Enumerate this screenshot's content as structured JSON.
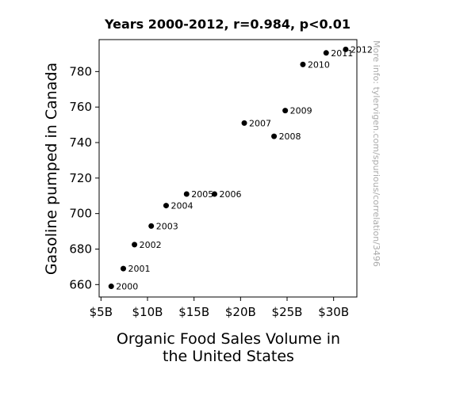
{
  "chart_data": {
    "type": "scatter",
    "title": "Years 2000-2012, r=0.984, p<0.01",
    "xlabel": [
      "Organic Food Sales Volume in",
      "the United States"
    ],
    "ylabel": "Gasoline pumped in Canada",
    "xlim": [
      4.8,
      32.5
    ],
    "ylim": [
      653,
      798
    ],
    "xticks": [
      5,
      10,
      15,
      20,
      25,
      30
    ],
    "xtick_labels": [
      "$5B",
      "$10B",
      "$15B",
      "$20B",
      "$25B",
      "$30B"
    ],
    "yticks": [
      660,
      680,
      700,
      720,
      740,
      760,
      780
    ],
    "ytick_labels": [
      "660",
      "680",
      "700",
      "720",
      "740",
      "760",
      "780"
    ],
    "grid": false,
    "marker_color": "#000000",
    "points": [
      {
        "label": "2000",
        "x": 6.1,
        "y": 659
      },
      {
        "label": "2001",
        "x": 7.4,
        "y": 669
      },
      {
        "label": "2002",
        "x": 8.6,
        "y": 682.5
      },
      {
        "label": "2003",
        "x": 10.4,
        "y": 693
      },
      {
        "label": "2004",
        "x": 12.0,
        "y": 704.5
      },
      {
        "label": "2005",
        "x": 14.2,
        "y": 711
      },
      {
        "label": "2006",
        "x": 17.2,
        "y": 711
      },
      {
        "label": "2007",
        "x": 20.4,
        "y": 751
      },
      {
        "label": "2008",
        "x": 23.6,
        "y": 743.5
      },
      {
        "label": "2009",
        "x": 24.8,
        "y": 758
      },
      {
        "label": "2010",
        "x": 26.7,
        "y": 784
      },
      {
        "label": "2011",
        "x": 29.2,
        "y": 790.5
      },
      {
        "label": "2012",
        "x": 31.3,
        "y": 792.5
      }
    ]
  },
  "watermark": "More info: tylervigen.com/spurious/correlation/3496"
}
